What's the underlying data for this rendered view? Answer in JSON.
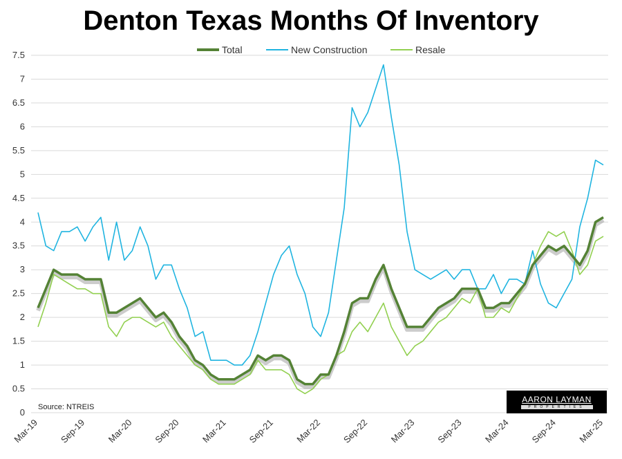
{
  "chart_data": {
    "type": "line",
    "title": "Denton Texas Months Of Inventory",
    "xlabel": "",
    "ylabel": "",
    "ylim": [
      0,
      7.5
    ],
    "yticks": [
      "0",
      "0.5",
      "1",
      "1.5",
      "2",
      "2.5",
      "3",
      "3.5",
      "4",
      "4.5",
      "5",
      "5.5",
      "6",
      "6.5",
      "7",
      "7.5"
    ],
    "xtick_labels": [
      "Mar-19",
      "Sep-19",
      "Mar-20",
      "Sep-20",
      "Mar-21",
      "Sep-21",
      "Mar-22",
      "Sep-22",
      "Mar-23",
      "Sep-23",
      "Mar-24",
      "Sep-24",
      "Mar-25"
    ],
    "x_start": "Mar-19",
    "x_end": "Mar-25",
    "grid": true,
    "legend_placement": "top",
    "series": [
      {
        "name": "Total",
        "color": "#548235",
        "values": [
          2.2,
          2.6,
          3.0,
          2.9,
          2.9,
          2.9,
          2.8,
          2.8,
          2.8,
          2.1,
          2.1,
          2.2,
          2.3,
          2.4,
          2.2,
          2.0,
          2.1,
          1.9,
          1.6,
          1.4,
          1.1,
          1.0,
          0.8,
          0.7,
          0.7,
          0.7,
          0.8,
          0.9,
          1.2,
          1.1,
          1.2,
          1.2,
          1.1,
          0.7,
          0.6,
          0.6,
          0.8,
          0.8,
          1.2,
          1.7,
          2.3,
          2.4,
          2.4,
          2.8,
          3.1,
          2.6,
          2.2,
          1.8,
          1.8,
          1.8,
          2.0,
          2.2,
          2.3,
          2.4,
          2.6,
          2.6,
          2.6,
          2.2,
          2.2,
          2.3,
          2.3,
          2.5,
          2.7,
          3.1,
          3.3,
          3.5,
          3.4,
          3.5,
          3.3,
          3.1,
          3.4,
          4.0,
          4.1
        ]
      },
      {
        "name": "New Construction",
        "color": "#1fb4e0",
        "values": [
          4.2,
          3.5,
          3.4,
          3.8,
          3.8,
          3.9,
          3.6,
          3.9,
          4.1,
          3.2,
          4.0,
          3.2,
          3.4,
          3.9,
          3.5,
          2.8,
          3.1,
          3.1,
          2.6,
          2.2,
          1.6,
          1.7,
          1.1,
          1.1,
          1.1,
          1.0,
          1.0,
          1.2,
          1.7,
          2.3,
          2.9,
          3.3,
          3.5,
          2.9,
          2.5,
          1.8,
          1.6,
          2.1,
          3.2,
          4.3,
          6.4,
          6.0,
          6.3,
          6.8,
          7.3,
          6.2,
          5.2,
          3.8,
          3.0,
          2.9,
          2.8,
          2.9,
          3.0,
          2.8,
          3.0,
          3.0,
          2.6,
          2.6,
          2.9,
          2.5,
          2.8,
          2.8,
          2.7,
          3.4,
          2.7,
          2.3,
          2.2,
          2.5,
          2.8,
          3.9,
          4.5,
          5.3,
          5.2
        ]
      },
      {
        "name": "Resale",
        "color": "#92d050",
        "values": [
          1.8,
          2.3,
          2.9,
          2.8,
          2.7,
          2.6,
          2.6,
          2.5,
          2.5,
          1.8,
          1.6,
          1.9,
          2.0,
          2.0,
          1.9,
          1.8,
          1.9,
          1.6,
          1.4,
          1.2,
          1.0,
          0.9,
          0.7,
          0.6,
          0.6,
          0.6,
          0.7,
          0.8,
          1.1,
          0.9,
          0.9,
          0.9,
          0.8,
          0.5,
          0.4,
          0.5,
          0.7,
          0.8,
          1.2,
          1.3,
          1.7,
          1.9,
          1.7,
          2.0,
          2.3,
          1.8,
          1.5,
          1.2,
          1.4,
          1.5,
          1.7,
          1.9,
          2.0,
          2.2,
          2.4,
          2.3,
          2.6,
          2.0,
          2.0,
          2.2,
          2.1,
          2.4,
          2.7,
          3.1,
          3.5,
          3.8,
          3.7,
          3.8,
          3.4,
          2.9,
          3.1,
          3.6,
          3.7
        ]
      }
    ],
    "annotations": [
      "Source: NTREIS"
    ]
  },
  "logo": {
    "name": "AARON LAYMAN",
    "sub": "PROPERTIES"
  }
}
